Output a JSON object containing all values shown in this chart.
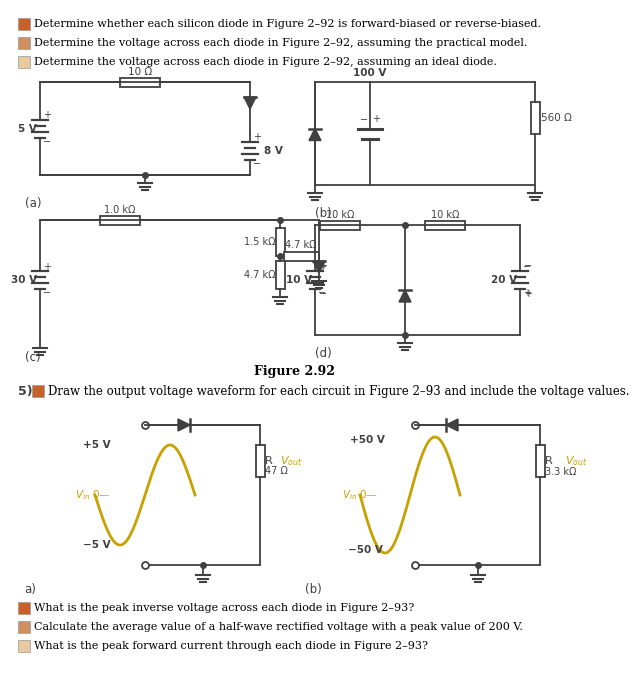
{
  "title_items": [
    {
      "bullet_color": "#C8602A",
      "text": "Determine whether each silicon diode in Figure 2–92 is forward-biased or reverse-biased."
    },
    {
      "bullet_color": "#D09060",
      "text": "Determine the voltage across each diode in Figure 2–92, assuming the practical model."
    },
    {
      "bullet_color": "#E8C9A0",
      "text": "Determine the voltage across each diode in Figure 2–92, assuming an ideal diode."
    }
  ],
  "figure_label": "Figure 2.92",
  "problem5_text": "Draw the output voltage waveform for each circuit in Figure 2–93 and include the voltage values.",
  "bottom_items": [
    {
      "bullet_color": "#C8602A",
      "text": "What is the peak inverse voltage across each diode in Figure 2–93?"
    },
    {
      "bullet_color": "#D09060",
      "text": "Calculate the average value of a half-wave rectified voltage with a peak value of 200 V."
    },
    {
      "bullet_color": "#E8C9A0",
      "text": "What is the peak forward current through each diode in Figure 2–93?"
    }
  ],
  "bg_color": "#FFFFFF",
  "line_color": "#404040",
  "text_color": "#000000",
  "sine_color": "#C8A000"
}
